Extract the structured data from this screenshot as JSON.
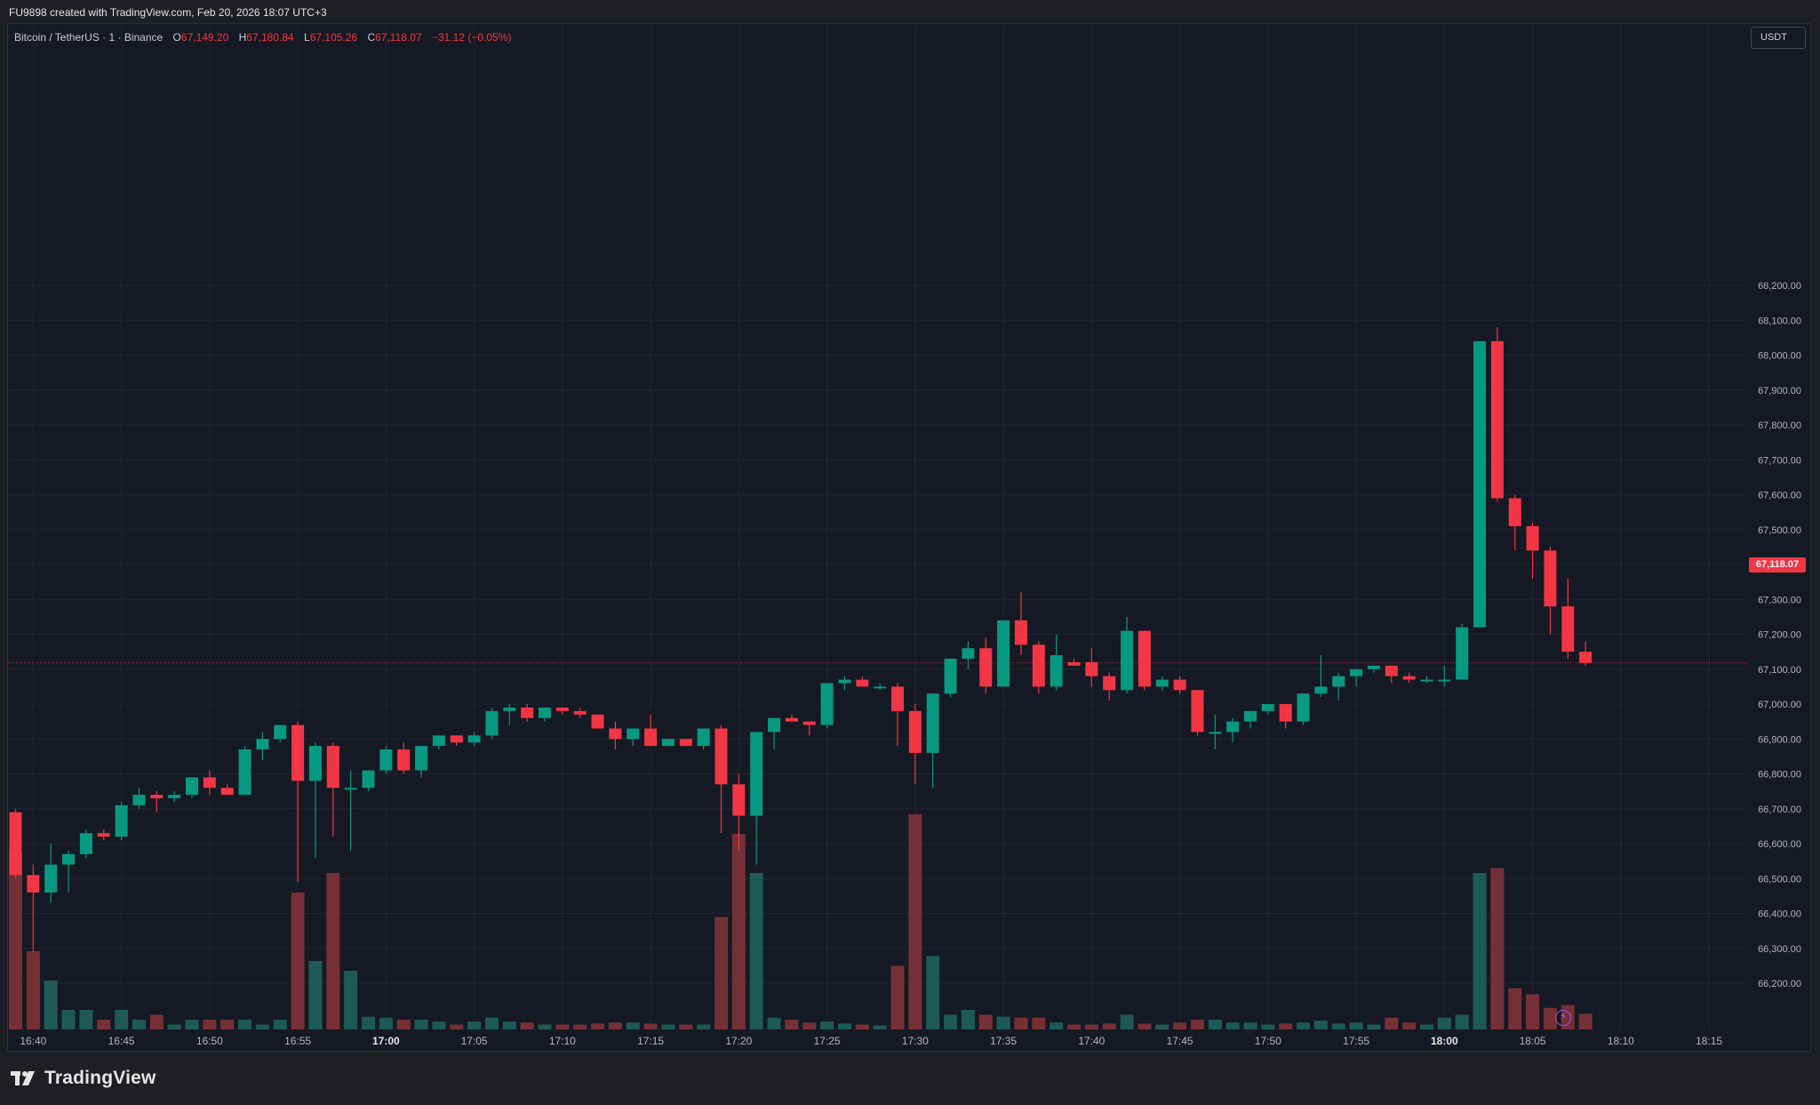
{
  "header": {
    "caption": "FU9898 created with TradingView.com, Feb 20, 2026 18:07 UTC+3"
  },
  "legend": {
    "symbol": "Bitcoin / TetherUS · 1 · Binance",
    "open_key": "O",
    "open": "67,149.20",
    "high_key": "H",
    "high": "67,180.84",
    "low_key": "L",
    "low": "67,105.26",
    "close_key": "C",
    "close": "67,118.07",
    "change": "−31.12 (−0.05%)"
  },
  "currency_button": "USDT",
  "last_price_label": "67,118.07",
  "footer": {
    "brand": "TradingView"
  },
  "colors": {
    "up": "#089981",
    "down": "#f23645",
    "background": "#151923",
    "grid": "#202431"
  },
  "icons": {
    "bolt": "lightning-bolt-icon",
    "logo": "tradingview-logo-icon"
  },
  "chart_data": {
    "type": "candlestick",
    "last_price": 67118.07,
    "y_axis": {
      "ticks": [
        66200,
        66300,
        66400,
        66500,
        66600,
        66700,
        66800,
        66900,
        67000,
        67100,
        67200,
        67300,
        67400,
        67500,
        67600,
        67700,
        67800,
        67900,
        68000,
        68100,
        68200
      ],
      "tick_labels": [
        "66,200.00",
        "66,300.00",
        "66,400.00",
        "66,500.00",
        "66,600.00",
        "66,700.00",
        "66,800.00",
        "66,900.00",
        "67,000.00",
        "67,100.00",
        "67,200.00",
        "67,300.00",
        "67,400.00",
        "67,500.00",
        "67,600.00",
        "67,700.00",
        "67,800.00",
        "67,900.00",
        "68,000.00",
        "68,100.00",
        "68,200.00"
      ]
    },
    "x_axis": {
      "start": "16:39",
      "tick_minutes": [
        1,
        6,
        11,
        16,
        21,
        26,
        31,
        36,
        41,
        46,
        51,
        56,
        61,
        66,
        71,
        76,
        81,
        86,
        91,
        96
      ],
      "tick_labels": [
        "16:40",
        "16:45",
        "16:50",
        "16:55",
        "17:00",
        "17:05",
        "17:10",
        "17:15",
        "17:20",
        "17:25",
        "17:30",
        "17:35",
        "17:40",
        "17:45",
        "17:50",
        "17:55",
        "18:00",
        "18:05",
        "18:10",
        "18:15"
      ],
      "bold_labels": [
        "17:00",
        "18:00"
      ]
    },
    "candles": [
      [
        66690,
        66700,
        66500,
        66510,
        18
      ],
      [
        66510,
        66540,
        66290,
        66460,
        8
      ],
      [
        66460,
        66600,
        66430,
        66540,
        5
      ],
      [
        66540,
        66580,
        66460,
        66570,
        2
      ],
      [
        66570,
        66640,
        66560,
        66630,
        2
      ],
      [
        66630,
        66640,
        66610,
        66620,
        1
      ],
      [
        66620,
        66720,
        66610,
        66710,
        2
      ],
      [
        66710,
        66760,
        66700,
        66740,
        1
      ],
      [
        66740,
        66750,
        66690,
        66730,
        1.5
      ],
      [
        66730,
        66750,
        66720,
        66740,
        0.5
      ],
      [
        66740,
        66790,
        66730,
        66790,
        1
      ],
      [
        66790,
        66810,
        66740,
        66760,
        1
      ],
      [
        66760,
        66770,
        66740,
        66740,
        1
      ],
      [
        66740,
        66880,
        66740,
        66870,
        1
      ],
      [
        66870,
        66920,
        66840,
        66900,
        0.5
      ],
      [
        66900,
        66940,
        66890,
        66940,
        1
      ],
      [
        66940,
        66950,
        66490,
        66780,
        14
      ],
      [
        66780,
        66890,
        66560,
        66880,
        7
      ],
      [
        66880,
        66890,
        66620,
        66760,
        16
      ],
      [
        66760,
        66810,
        66580,
        66760,
        6
      ],
      [
        66760,
        66810,
        66750,
        66810,
        1.3
      ],
      [
        66810,
        66880,
        66800,
        66870,
        1.2
      ],
      [
        66870,
        66890,
        66800,
        66810,
        1
      ],
      [
        66810,
        66880,
        66790,
        66880,
        1
      ],
      [
        66880,
        66910,
        66870,
        66910,
        0.8
      ],
      [
        66910,
        66910,
        66880,
        66890,
        0.5
      ],
      [
        66890,
        66920,
        66880,
        66910,
        0.8
      ],
      [
        66910,
        66990,
        66900,
        66980,
        1.2
      ],
      [
        66980,
        67000,
        66940,
        66990,
        0.8
      ],
      [
        66990,
        67000,
        66950,
        66960,
        0.7
      ],
      [
        66960,
        66990,
        66950,
        66990,
        0.5
      ],
      [
        66990,
        66990,
        66970,
        66980,
        0.5
      ],
      [
        66980,
        66990,
        66960,
        66970,
        0.5
      ],
      [
        66970,
        66960,
        66930,
        66930,
        0.6
      ],
      [
        66930,
        66950,
        66870,
        66900,
        0.7
      ],
      [
        66900,
        66930,
        66880,
        66930,
        0.7
      ],
      [
        66930,
        66970,
        66880,
        66880,
        0.6
      ],
      [
        66880,
        66900,
        66880,
        66900,
        0.5
      ],
      [
        66900,
        66900,
        66880,
        66880,
        0.5
      ],
      [
        66880,
        66930,
        66870,
        66930,
        0.5
      ],
      [
        66930,
        66940,
        66630,
        66770,
        11.5
      ],
      [
        66770,
        66800,
        66580,
        66680,
        20
      ],
      [
        66680,
        66920,
        66540,
        66920,
        16
      ],
      [
        66920,
        66960,
        66870,
        66960,
        1.2
      ],
      [
        66960,
        66970,
        66950,
        66950,
        1
      ],
      [
        66950,
        66950,
        66910,
        66940,
        0.7
      ],
      [
        66940,
        67060,
        66930,
        67060,
        0.8
      ],
      [
        67060,
        67080,
        67040,
        67070,
        0.6
      ],
      [
        67070,
        67080,
        67050,
        67050,
        0.5
      ],
      [
        67050,
        67060,
        67040,
        67050,
        0.4
      ],
      [
        67050,
        67060,
        66880,
        66980,
        6.5
      ],
      [
        66980,
        67000,
        66770,
        66860,
        22
      ],
      [
        66860,
        67030,
        66760,
        67030,
        7.5
      ],
      [
        67030,
        67130,
        67020,
        67130,
        1.5
      ],
      [
        67130,
        67180,
        67100,
        67160,
        2
      ],
      [
        67160,
        67190,
        67030,
        67050,
        1.5
      ],
      [
        67050,
        67240,
        67050,
        67240,
        1.3
      ],
      [
        67240,
        67320,
        67140,
        67170,
        1.2
      ],
      [
        67170,
        67180,
        67030,
        67050,
        1.2
      ],
      [
        67050,
        67200,
        67040,
        67140,
        0.7
      ],
      [
        67120,
        67130,
        67110,
        67110,
        0.5
      ],
      [
        67120,
        67160,
        67050,
        67080,
        0.5
      ],
      [
        67080,
        67090,
        67010,
        67040,
        0.6
      ],
      [
        67040,
        67250,
        67030,
        67210,
        1.5
      ],
      [
        67210,
        67210,
        67040,
        67050,
        0.6
      ],
      [
        67050,
        67080,
        67040,
        67070,
        0.5
      ],
      [
        67070,
        67080,
        67030,
        67040,
        0.7
      ],
      [
        67040,
        67040,
        66910,
        66920,
        1
      ],
      [
        66920,
        66970,
        66870,
        66920,
        1
      ],
      [
        66920,
        66960,
        66890,
        66950,
        0.7
      ],
      [
        66950,
        66980,
        66930,
        66980,
        0.7
      ],
      [
        66980,
        67000,
        66970,
        67000,
        0.5
      ],
      [
        67000,
        67000,
        66930,
        66950,
        0.6
      ],
      [
        66950,
        67030,
        66940,
        67030,
        0.7
      ],
      [
        67030,
        67140,
        67020,
        67050,
        0.9
      ],
      [
        67050,
        67090,
        67010,
        67080,
        0.6
      ],
      [
        67080,
        67100,
        67050,
        67100,
        0.7
      ],
      [
        67100,
        67110,
        67090,
        67110,
        0.5
      ],
      [
        67110,
        67110,
        67060,
        67080,
        1.2
      ],
      [
        67080,
        67090,
        67060,
        67070,
        0.7
      ],
      [
        67070,
        67080,
        67060,
        67070,
        0.5
      ],
      [
        67070,
        67110,
        67050,
        67070,
        1.2
      ],
      [
        67070,
        67230,
        67070,
        67220,
        1.5
      ],
      [
        67220,
        68040,
        67220,
        68040,
        16
      ],
      [
        68040,
        68080,
        67580,
        67590,
        16.5
      ],
      [
        67590,
        67600,
        67440,
        67510,
        4.2
      ],
      [
        67510,
        67520,
        67360,
        67440,
        3.6
      ],
      [
        67440,
        67450,
        67200,
        67280,
        2.2
      ],
      [
        67280,
        67360,
        67130,
        67150,
        2.5
      ],
      [
        67150,
        67180,
        67110,
        67118.07,
        1.6
      ]
    ]
  }
}
